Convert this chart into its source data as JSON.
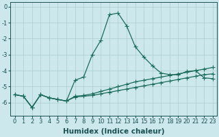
{
  "xlabel": "Humidex (Indice chaleur)",
  "bg_color": "#cce8ec",
  "grid_color": "#aacccc",
  "line_color": "#1a6a5a",
  "xlim": [
    -0.5,
    23.5
  ],
  "ylim": [
    -6.8,
    0.3
  ],
  "yticks": [
    0,
    -1,
    -2,
    -3,
    -4,
    -5,
    -6
  ],
  "xticks": [
    0,
    1,
    2,
    3,
    4,
    5,
    6,
    7,
    8,
    9,
    10,
    11,
    12,
    13,
    14,
    15,
    16,
    17,
    18,
    19,
    20,
    21,
    22,
    23
  ],
  "series1_x": [
    0,
    1,
    2,
    3,
    4,
    5,
    6,
    7,
    8,
    9,
    10,
    11,
    12,
    13,
    14,
    15,
    16,
    17,
    18,
    19,
    20,
    21,
    22,
    23
  ],
  "series1_y": [
    -5.5,
    -5.6,
    -6.3,
    -5.5,
    -5.7,
    -5.8,
    -5.9,
    -4.6,
    -4.4,
    -3.0,
    -2.1,
    -0.5,
    -0.4,
    -1.2,
    -2.5,
    -3.15,
    -3.7,
    -4.15,
    -4.25,
    -4.25,
    -4.05,
    -4.0,
    -4.45,
    -4.5
  ],
  "series2_x": [
    0,
    1,
    2,
    3,
    4,
    5,
    6,
    7,
    8,
    9,
    10,
    11,
    12,
    13,
    14,
    15,
    16,
    17,
    18,
    19,
    20,
    21,
    22,
    23
  ],
  "series2_y": [
    -5.5,
    -5.6,
    -6.3,
    -5.5,
    -5.7,
    -5.8,
    -5.9,
    -5.6,
    -5.55,
    -5.45,
    -5.3,
    -5.15,
    -5.0,
    -4.85,
    -4.7,
    -4.6,
    -4.5,
    -4.4,
    -4.3,
    -4.2,
    -4.1,
    -4.0,
    -3.9,
    -3.8
  ],
  "series3_x": [
    0,
    1,
    2,
    3,
    4,
    5,
    6,
    7,
    8,
    9,
    10,
    11,
    12,
    13,
    14,
    15,
    16,
    17,
    18,
    19,
    20,
    21,
    22,
    23
  ],
  "series3_y": [
    -5.5,
    -5.6,
    -6.3,
    -5.5,
    -5.7,
    -5.8,
    -5.9,
    -5.65,
    -5.6,
    -5.55,
    -5.45,
    -5.35,
    -5.25,
    -5.15,
    -5.05,
    -4.95,
    -4.85,
    -4.75,
    -4.65,
    -4.55,
    -4.45,
    -4.35,
    -4.25,
    -4.2
  ],
  "label_fontsize": 7.5,
  "tick_fontsize": 6.0
}
